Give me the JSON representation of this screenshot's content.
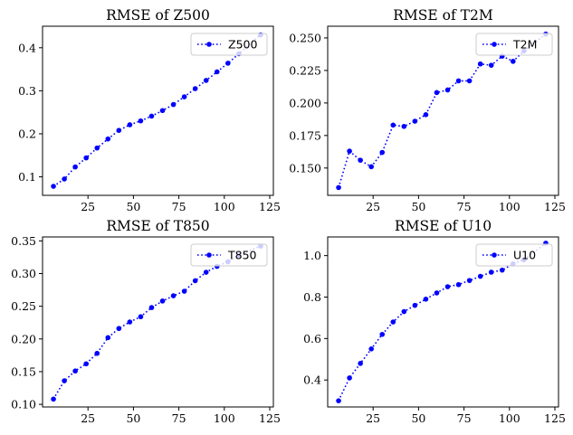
{
  "chart_data": [
    {
      "type": "line",
      "title": "RMSE of Z500",
      "xlabel": "",
      "ylabel": "",
      "xlim": [
        0,
        127
      ],
      "ylim": [
        0.057,
        0.45
      ],
      "xticks": [
        25,
        50,
        75,
        100,
        125
      ],
      "yticks": [
        0.1,
        0.2,
        0.3,
        0.4
      ],
      "ytick_labels": [
        "0.1",
        "0.2",
        "0.3",
        "0.4"
      ],
      "grid": false,
      "legend": "upper-right",
      "series": [
        {
          "name": "Z500",
          "color": "#0000ff",
          "x": [
            6,
            12,
            18,
            24,
            30,
            36,
            42,
            48,
            54,
            60,
            66,
            72,
            78,
            84,
            90,
            96,
            102,
            108,
            120
          ],
          "y": [
            0.078,
            0.095,
            0.123,
            0.144,
            0.167,
            0.188,
            0.208,
            0.221,
            0.23,
            0.241,
            0.254,
            0.268,
            0.286,
            0.305,
            0.324,
            0.344,
            0.364,
            0.386,
            0.43
          ]
        }
      ]
    },
    {
      "type": "line",
      "title": "RMSE of T2M",
      "xlabel": "",
      "ylabel": "",
      "xlim": [
        0,
        127
      ],
      "ylim": [
        0.129,
        0.259
      ],
      "xticks": [
        25,
        50,
        75,
        100,
        125
      ],
      "yticks": [
        0.15,
        0.175,
        0.2,
        0.225,
        0.25
      ],
      "ytick_labels": [
        "0.150",
        "0.175",
        "0.200",
        "0.225",
        "0.250"
      ],
      "grid": false,
      "legend": "upper-right",
      "series": [
        {
          "name": "T2M",
          "color": "#0000ff",
          "x": [
            6,
            12,
            18,
            24,
            30,
            36,
            42,
            48,
            54,
            60,
            66,
            72,
            78,
            84,
            90,
            96,
            102,
            108,
            120
          ],
          "y": [
            0.135,
            0.163,
            0.156,
            0.151,
            0.162,
            0.183,
            0.182,
            0.186,
            0.191,
            0.208,
            0.21,
            0.217,
            0.217,
            0.23,
            0.229,
            0.236,
            0.232,
            0.24,
            0.253
          ]
        }
      ]
    },
    {
      "type": "line",
      "title": "RMSE of T850",
      "xlabel": "",
      "ylabel": "",
      "xlim": [
        0,
        127
      ],
      "ylim": [
        0.096,
        0.356
      ],
      "xticks": [
        25,
        50,
        75,
        100,
        125
      ],
      "yticks": [
        0.1,
        0.15,
        0.2,
        0.25,
        0.3,
        0.35
      ],
      "ytick_labels": [
        "0.10",
        "0.15",
        "0.20",
        "0.25",
        "0.30",
        "0.35"
      ],
      "grid": false,
      "legend": "upper-right",
      "series": [
        {
          "name": "T850",
          "color": "#0000ff",
          "x": [
            6,
            12,
            18,
            24,
            30,
            36,
            42,
            48,
            54,
            60,
            66,
            72,
            78,
            84,
            90,
            96,
            102,
            108,
            120
          ],
          "y": [
            0.108,
            0.136,
            0.151,
            0.162,
            0.178,
            0.202,
            0.216,
            0.226,
            0.234,
            0.248,
            0.258,
            0.266,
            0.273,
            0.289,
            0.302,
            0.311,
            0.318,
            0.328,
            0.342
          ]
        }
      ]
    },
    {
      "type": "line",
      "title": "RMSE of U10",
      "xlabel": "",
      "ylabel": "",
      "xlim": [
        0,
        127
      ],
      "ylim": [
        0.27,
        1.09
      ],
      "xticks": [
        25,
        50,
        75,
        100,
        125
      ],
      "yticks": [
        0.4,
        0.6,
        0.8,
        1.0
      ],
      "ytick_labels": [
        "0.4",
        "0.6",
        "0.8",
        "1.0"
      ],
      "grid": false,
      "legend": "upper-right",
      "series": [
        {
          "name": "U10",
          "color": "#0000ff",
          "x": [
            6,
            12,
            18,
            24,
            30,
            36,
            42,
            48,
            54,
            60,
            66,
            72,
            78,
            84,
            90,
            96,
            102,
            108,
            120
          ],
          "y": [
            0.3,
            0.41,
            0.48,
            0.55,
            0.62,
            0.68,
            0.73,
            0.76,
            0.79,
            0.82,
            0.85,
            0.86,
            0.88,
            0.9,
            0.92,
            0.93,
            0.96,
            0.98,
            1.06
          ]
        }
      ]
    }
  ]
}
